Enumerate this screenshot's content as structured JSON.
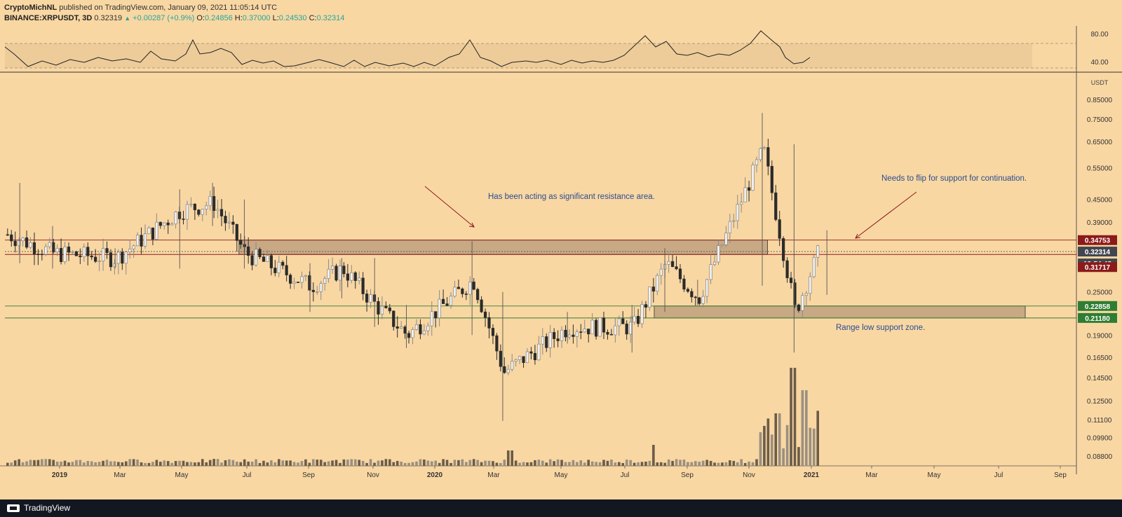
{
  "header": {
    "author": "CryptoMichNL",
    "published": "published on TradingView.com, January 09, 2021 11:05:14 UTC",
    "symbol": "BINANCE:XRPUSDT, 3D",
    "price": "0.32319",
    "change": "+0.00287 (+0.9%)",
    "o_label": "O:",
    "o_value": "0.24856",
    "h_label": "H:",
    "h_value": "0.37000",
    "l_label": "L:",
    "l_value": "0.24530",
    "c_label": "C:",
    "c_value": "0.32314"
  },
  "footer": {
    "brand": "TradingView"
  },
  "colors": {
    "background": "#f9d7a3",
    "candle": "#2b2b2b",
    "resistance_line": "#8b1a1a",
    "support_line": "#2e7d32",
    "price_tag_dark": "#43464f"
  },
  "chart_data": {
    "type": "candlestick",
    "scale": "log",
    "ylabel": "USDT",
    "y_ticks": [
      "0.85000",
      "0.75000",
      "0.65000",
      "0.55000",
      "0.45000",
      "0.39000",
      "0.25000",
      "0.19000",
      "0.16500",
      "0.14500",
      "0.12500",
      "0.11100",
      "0.09900",
      "0.08800"
    ],
    "x_ticks": [
      "2019",
      "Mar",
      "May",
      "Jul",
      "Sep",
      "Nov",
      "2020",
      "Mar",
      "May",
      "Jul",
      "Sep",
      "Nov",
      "2021",
      "Mar",
      "May",
      "Jul",
      "Sep"
    ],
    "oscillator": {
      "ticks": [
        "80.00",
        "40.00"
      ],
      "upper_band": 70,
      "lower_band": 30
    },
    "price_tags": [
      {
        "value": "0.34753",
        "kind": "resistance"
      },
      {
        "value": "0.32314",
        "kind": "last"
      },
      {
        "value": "12:54:48",
        "kind": "countdown"
      },
      {
        "value": "0.31717",
        "kind": "resistance"
      },
      {
        "value": "0.22858",
        "kind": "support"
      },
      {
        "value": "0.21180",
        "kind": "support"
      }
    ],
    "levels": [
      {
        "value": 0.34753,
        "kind": "resistance"
      },
      {
        "value": 0.31717,
        "kind": "resistance"
      },
      {
        "value": 0.22858,
        "kind": "support"
      },
      {
        "value": 0.2118,
        "kind": "support"
      }
    ],
    "zones": [
      {
        "from_date": "2019-07-10",
        "to_date": "2020-11-20",
        "low": 0.31717,
        "high": 0.34753
      },
      {
        "from_date": "2020-08-05",
        "to_date": "2021-08-15",
        "low": 0.2118,
        "high": 0.22858
      }
    ],
    "annotations": [
      "Has been acting as significant resistance area.",
      "Needs to flip for support for continuation.",
      "Range low support zone."
    ],
    "series": [
      {
        "date": "2018-12",
        "close": 0.36,
        "low": 0.3,
        "high": 0.5
      },
      {
        "date": "2019-01",
        "close": 0.32,
        "low": 0.29,
        "high": 0.38
      },
      {
        "date": "2019-03",
        "close": 0.31,
        "low": 0.29,
        "high": 0.33
      },
      {
        "date": "2019-05",
        "close": 0.42,
        "low": 0.29,
        "high": 0.48
      },
      {
        "date": "2019-06",
        "close": 0.44,
        "low": 0.38,
        "high": 0.5
      },
      {
        "date": "2019-07",
        "close": 0.32,
        "low": 0.29,
        "high": 0.45
      },
      {
        "date": "2019-09",
        "close": 0.26,
        "low": 0.22,
        "high": 0.3
      },
      {
        "date": "2019-10",
        "close": 0.29,
        "low": 0.24,
        "high": 0.31
      },
      {
        "date": "2019-11",
        "close": 0.23,
        "low": 0.2,
        "high": 0.31
      },
      {
        "date": "2019-12",
        "close": 0.19,
        "low": 0.175,
        "high": 0.23
      },
      {
        "date": "2020-02",
        "close": 0.27,
        "low": 0.19,
        "high": 0.345
      },
      {
        "date": "2020-03",
        "close": 0.15,
        "low": 0.11,
        "high": 0.25
      },
      {
        "date": "2020-05",
        "close": 0.2,
        "low": 0.18,
        "high": 0.22
      },
      {
        "date": "2020-07",
        "close": 0.2,
        "low": 0.17,
        "high": 0.23
      },
      {
        "date": "2020-08",
        "close": 0.3,
        "low": 0.22,
        "high": 0.33
      },
      {
        "date": "2020-09",
        "close": 0.24,
        "low": 0.23,
        "high": 0.27
      },
      {
        "date": "2020-11",
        "close": 0.62,
        "low": 0.26,
        "high": 0.78
      },
      {
        "date": "2020-12",
        "close": 0.22,
        "low": 0.17,
        "high": 0.64
      },
      {
        "date": "2021-01",
        "close": 0.32314,
        "low": 0.2453,
        "high": 0.37
      }
    ]
  }
}
